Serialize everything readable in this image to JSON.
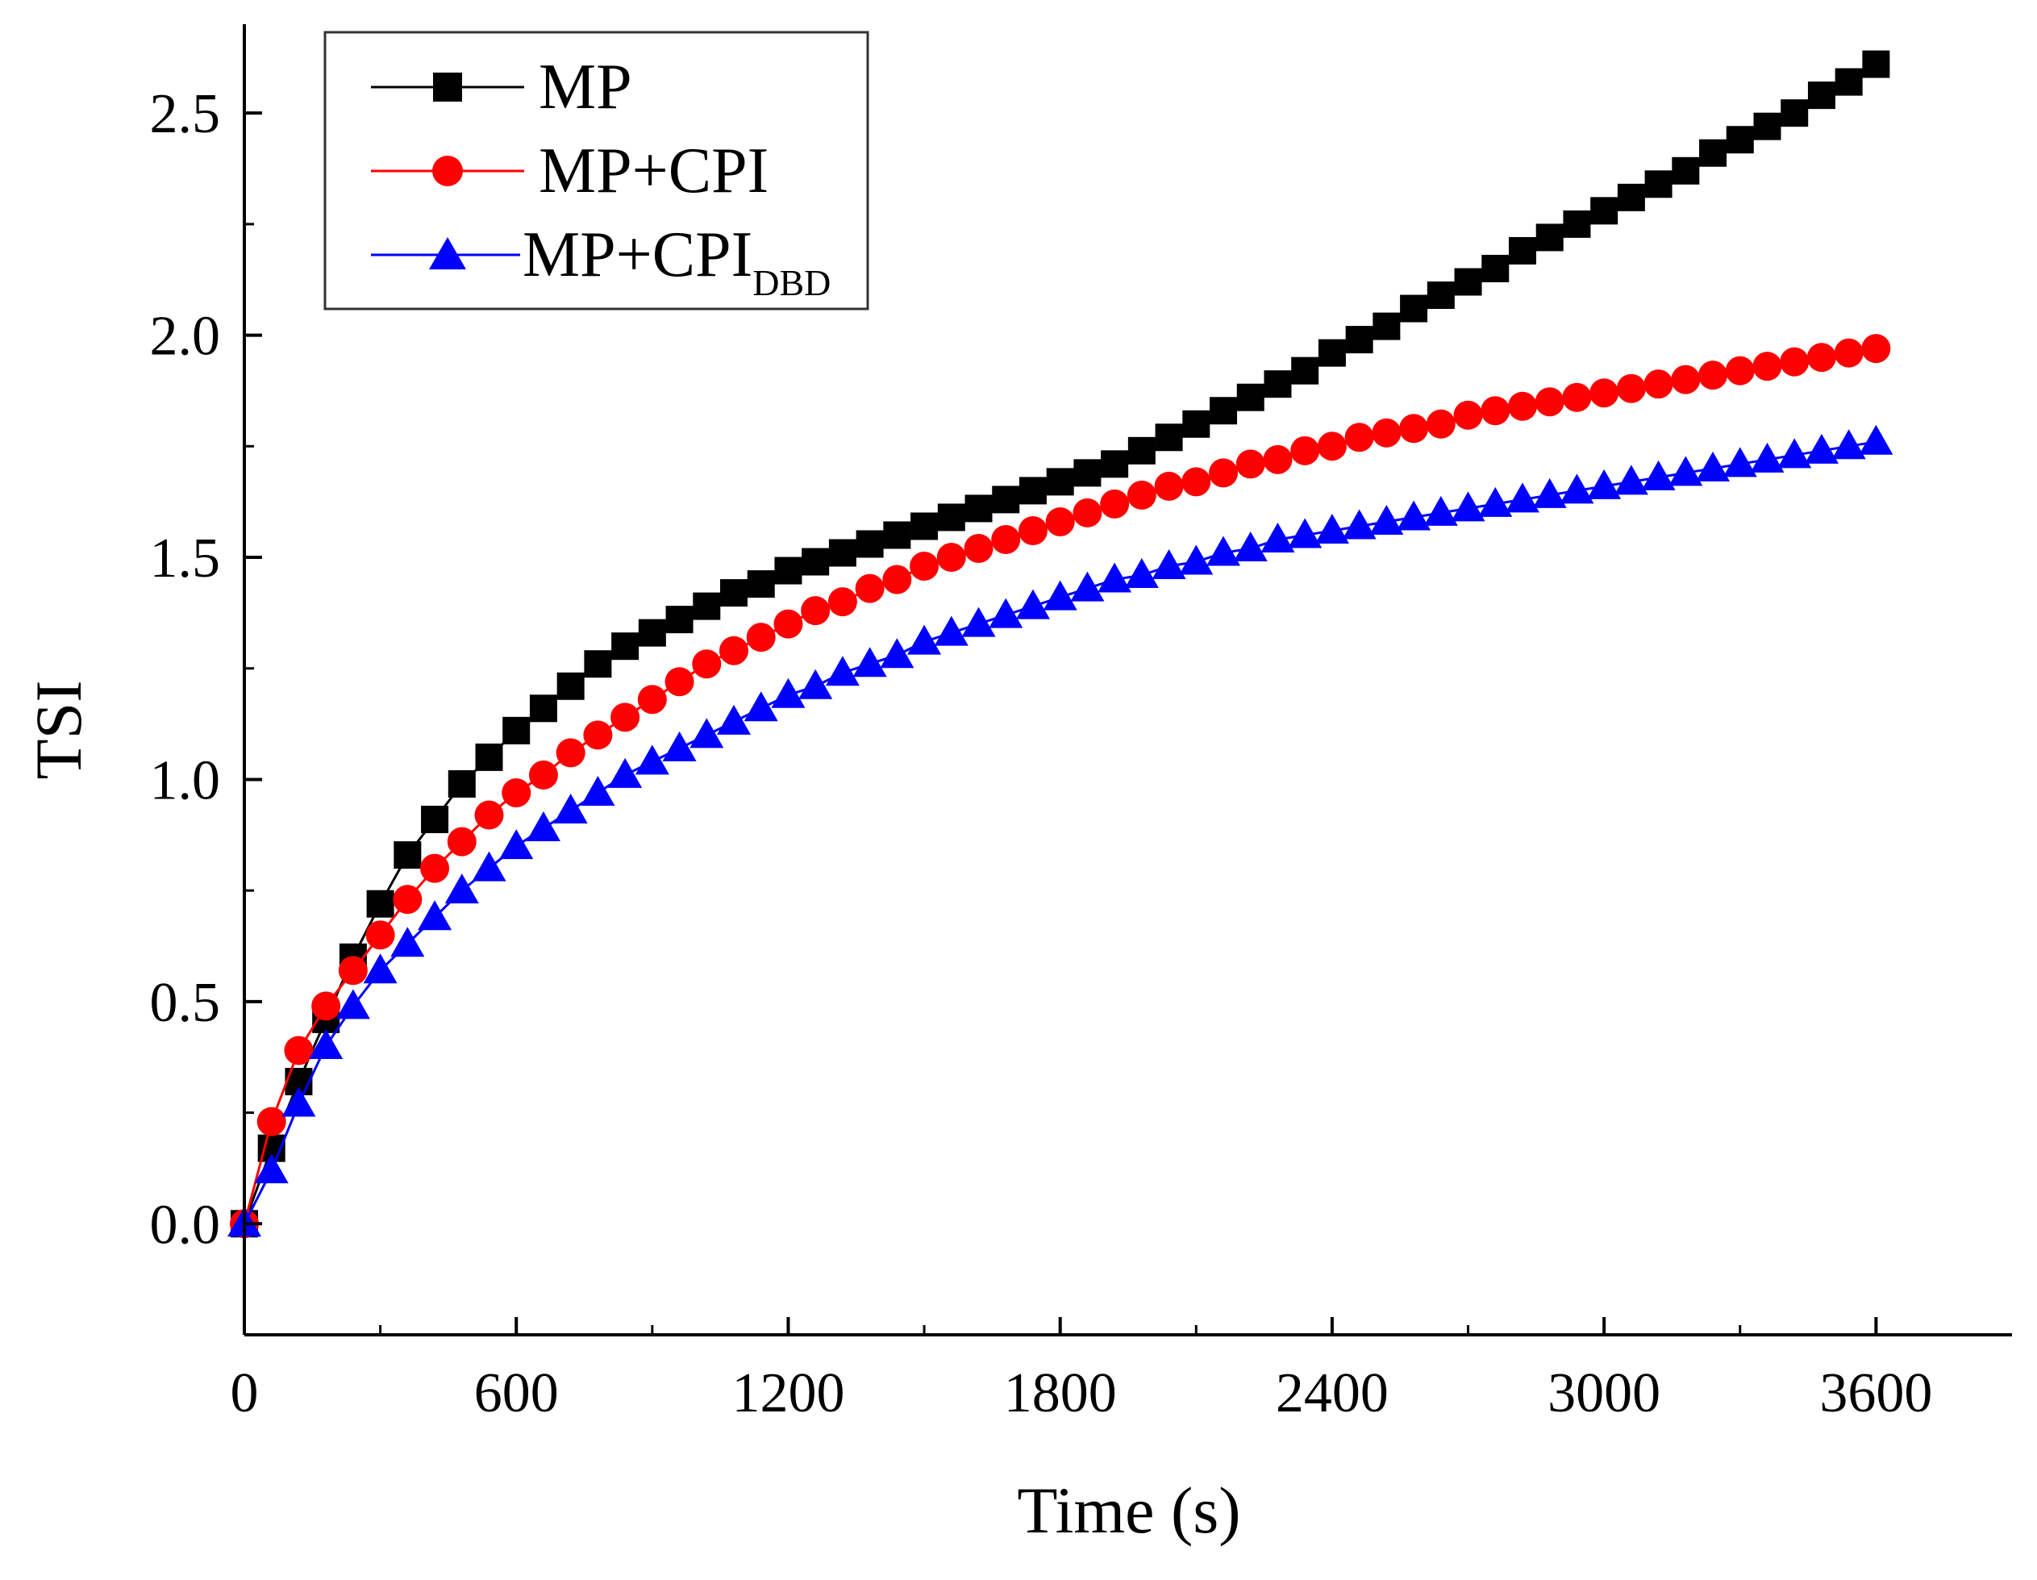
{
  "chart_data": {
    "type": "line",
    "title": "",
    "xlabel": "Time (s)",
    "ylabel": "TSI",
    "xlim": [
      0,
      3900
    ],
    "ylim": [
      -0.25,
      2.7
    ],
    "x_ticks": [
      0,
      600,
      1200,
      1800,
      2400,
      3000,
      3600
    ],
    "x_tick_labels": [
      "0",
      "600",
      "1200",
      "1800",
      "2400",
      "3000",
      "3600"
    ],
    "y_ticks": [
      0.0,
      0.5,
      1.0,
      1.5,
      2.0,
      2.5
    ],
    "y_tick_labels": [
      "0.0",
      "0.5",
      "1.0",
      "1.5",
      "2.0",
      "2.5"
    ],
    "grid": false,
    "legend_position": "top-left",
    "x": [
      0,
      60,
      120,
      180,
      240,
      300,
      360,
      420,
      480,
      540,
      600,
      660,
      720,
      780,
      840,
      900,
      960,
      1020,
      1080,
      1140,
      1200,
      1260,
      1320,
      1380,
      1440,
      1500,
      1560,
      1620,
      1680,
      1740,
      1800,
      1860,
      1920,
      1980,
      2040,
      2100,
      2160,
      2220,
      2280,
      2340,
      2400,
      2460,
      2520,
      2580,
      2640,
      2700,
      2760,
      2820,
      2880,
      2940,
      3000,
      3060,
      3120,
      3180,
      3240,
      3300,
      3360,
      3420,
      3480,
      3540,
      3600
    ],
    "series": [
      {
        "name": "MP",
        "color": "#000000",
        "marker": "square",
        "values": [
          0.0,
          0.17,
          0.32,
          0.46,
          0.6,
          0.72,
          0.83,
          0.91,
          0.99,
          1.05,
          1.11,
          1.16,
          1.21,
          1.26,
          1.3,
          1.33,
          1.36,
          1.39,
          1.42,
          1.44,
          1.47,
          1.49,
          1.51,
          1.53,
          1.55,
          1.57,
          1.59,
          1.61,
          1.63,
          1.65,
          1.67,
          1.69,
          1.71,
          1.74,
          1.77,
          1.8,
          1.83,
          1.86,
          1.89,
          1.92,
          1.96,
          1.99,
          2.02,
          2.06,
          2.09,
          2.12,
          2.15,
          2.19,
          2.22,
          2.25,
          2.28,
          2.31,
          2.34,
          2.37,
          2.41,
          2.44,
          2.47,
          2.5,
          2.54,
          2.57,
          2.61
        ]
      },
      {
        "name": "MP+CPI",
        "color": "#ff0000",
        "marker": "circle",
        "values": [
          0.0,
          0.23,
          0.39,
          0.49,
          0.57,
          0.65,
          0.73,
          0.8,
          0.86,
          0.92,
          0.97,
          1.01,
          1.06,
          1.1,
          1.14,
          1.18,
          1.22,
          1.26,
          1.29,
          1.32,
          1.35,
          1.38,
          1.4,
          1.43,
          1.45,
          1.48,
          1.5,
          1.52,
          1.54,
          1.56,
          1.58,
          1.6,
          1.62,
          1.64,
          1.66,
          1.67,
          1.69,
          1.71,
          1.72,
          1.74,
          1.75,
          1.77,
          1.78,
          1.79,
          1.8,
          1.82,
          1.83,
          1.84,
          1.85,
          1.86,
          1.87,
          1.88,
          1.89,
          1.9,
          1.91,
          1.92,
          1.93,
          1.94,
          1.95,
          1.96,
          1.97
        ]
      },
      {
        "name": "MP+CPI",
        "name_subscript": "DBD",
        "color": "#0000ff",
        "marker": "triangle",
        "values": [
          0.0,
          0.12,
          0.27,
          0.4,
          0.49,
          0.57,
          0.63,
          0.69,
          0.75,
          0.8,
          0.85,
          0.89,
          0.93,
          0.97,
          1.01,
          1.04,
          1.07,
          1.1,
          1.13,
          1.16,
          1.19,
          1.21,
          1.24,
          1.26,
          1.28,
          1.31,
          1.33,
          1.35,
          1.37,
          1.39,
          1.41,
          1.43,
          1.45,
          1.46,
          1.48,
          1.49,
          1.51,
          1.52,
          1.54,
          1.55,
          1.56,
          1.57,
          1.58,
          1.59,
          1.6,
          1.61,
          1.62,
          1.63,
          1.64,
          1.65,
          1.66,
          1.67,
          1.68,
          1.69,
          1.7,
          1.71,
          1.72,
          1.73,
          1.74,
          1.75,
          1.76
        ]
      }
    ]
  }
}
